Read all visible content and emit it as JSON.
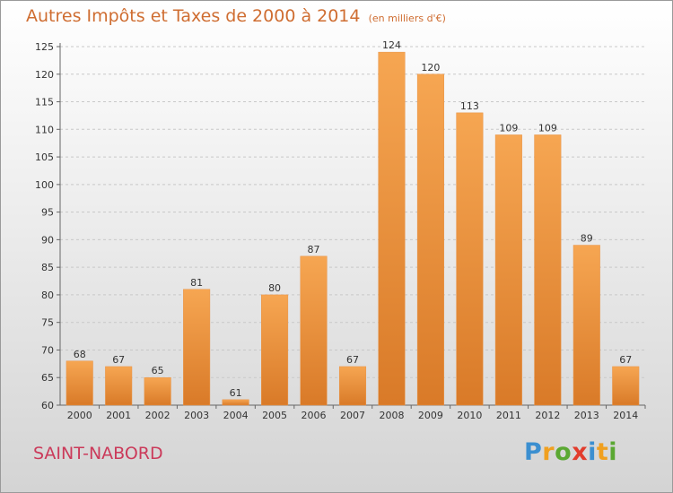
{
  "title": "Autres Impôts et Taxes de 2000 à 2014",
  "subtitle": "(en milliers d'€)",
  "commune": "SAINT-NABORD",
  "logo": {
    "letters": [
      "P",
      "r",
      "o",
      "x",
      "i",
      "t",
      "i"
    ],
    "colors": [
      "#3b8fd0",
      "#f0a020",
      "#5aa832",
      "#e23c2c",
      "#3b8fd0",
      "#f0a020",
      "#5aa832"
    ]
  },
  "colors": {
    "bar_light": "#f6a652",
    "bar_dark": "#d97a28",
    "title": "#cf6d31",
    "commune": "#cb3a5a"
  },
  "chart_data": {
    "type": "bar",
    "title": "Autres Impôts et Taxes de 2000 à 2014",
    "subtitle": "(en milliers d'€)",
    "xlabel": "",
    "ylabel": "",
    "categories": [
      "2000",
      "2001",
      "2002",
      "2003",
      "2004",
      "2005",
      "2006",
      "2007",
      "2008",
      "2009",
      "2010",
      "2011",
      "2012",
      "2013",
      "2014"
    ],
    "values": [
      68,
      67,
      65,
      81,
      61,
      80,
      87,
      67,
      124,
      120,
      113,
      109,
      109,
      89,
      67
    ],
    "ylim": [
      60,
      125
    ],
    "yticks": [
      60,
      65,
      70,
      75,
      80,
      85,
      90,
      95,
      100,
      105,
      110,
      115,
      120,
      125
    ],
    "grid": true,
    "legend": "none"
  }
}
